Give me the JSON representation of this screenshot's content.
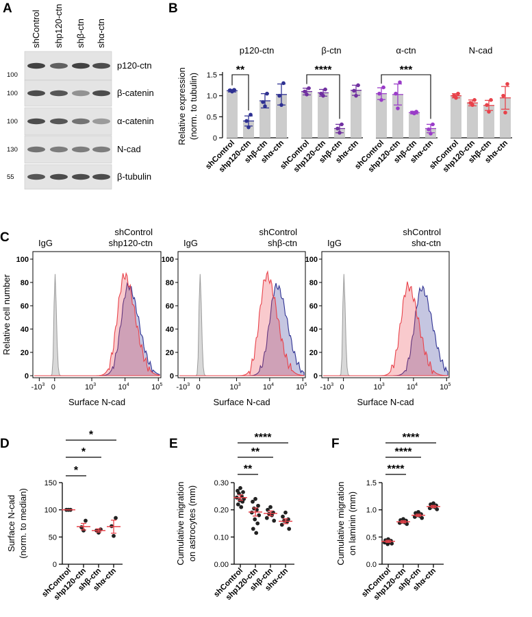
{
  "colors": {
    "blue": "#2e3192",
    "purple": "#7030a0",
    "red": "#e8424a",
    "gray": "#a0a0a0",
    "bar": "#cccccc",
    "median": "#e8424a",
    "dots": "#222222"
  },
  "panelA": {
    "label": "A",
    "lanes": [
      "shControl",
      "shp120-ctn",
      "shβ-ctn",
      "shα-ctn"
    ],
    "blots": [
      {
        "name": "p120-ctn",
        "mw": "100",
        "intensity": [
          0.85,
          0.7,
          0.85,
          0.8
        ]
      },
      {
        "name": "β-catenin",
        "mw": "100",
        "intensity": [
          0.8,
          0.75,
          0.45,
          0.8
        ]
      },
      {
        "name": "α-catenin",
        "mw": "100",
        "intensity": [
          0.8,
          0.75,
          0.6,
          0.4
        ]
      },
      {
        "name": "N-cad",
        "mw": "130",
        "intensity": [
          0.6,
          0.55,
          0.55,
          0.55
        ]
      },
      {
        "name": "β-tubulin",
        "mw": "55",
        "intensity": [
          0.75,
          0.8,
          0.8,
          0.8
        ]
      }
    ]
  },
  "chart_data": [
    {
      "panel": "B",
      "type": "bar",
      "ylabel": "Relative expression",
      "ylabel2": "(norm. to tubulin)",
      "ylim": [
        0,
        1.5
      ],
      "yticks": [
        "0",
        "0.5",
        "1.0",
        "1.5"
      ],
      "categories": [
        "shControl",
        "shp120-ctn",
        "shβ-ctn",
        "shα-ctn"
      ],
      "groups": [
        {
          "title": "p120-ctn",
          "color": "#2e3192",
          "means": [
            1.12,
            0.4,
            0.88,
            1.03
          ],
          "errors": [
            0.03,
            0.12,
            0.17,
            0.25
          ],
          "points": [
            [
              1.1,
              1.13,
              1.14
            ],
            [
              0.25,
              0.4,
              0.55
            ],
            [
              0.75,
              0.85,
              1.05
            ],
            [
              0.78,
              1.0,
              1.3
            ]
          ]
        },
        {
          "title": "β-ctn",
          "color": "#7030a0",
          "means": [
            1.1,
            1.07,
            0.22,
            1.13
          ],
          "errors": [
            0.08,
            0.08,
            0.1,
            0.12
          ],
          "points": [
            [
              1.03,
              1.1,
              1.18
            ],
            [
              1.0,
              1.05,
              1.15
            ],
            [
              0.12,
              0.22,
              0.32
            ],
            [
              1.0,
              1.12,
              1.25
            ]
          ]
        },
        {
          "title": "α-ctn",
          "color": "#9a3cc8",
          "means": [
            1.05,
            1.03,
            0.6,
            0.22
          ],
          "errors": [
            0.14,
            0.25,
            0.03,
            0.1
          ],
          "points": [
            [
              0.9,
              1.05,
              1.2
            ],
            [
              0.7,
              1.05,
              1.32
            ],
            [
              0.58,
              0.6,
              0.62
            ],
            [
              0.1,
              0.2,
              0.32
            ]
          ]
        },
        {
          "title": "N-cad",
          "color": "#e8424a",
          "means": [
            1.0,
            0.83,
            0.77,
            0.95
          ],
          "errors": [
            0.05,
            0.07,
            0.12,
            0.27
          ],
          "points": [
            [
              0.95,
              1.0,
              1.05
            ],
            [
              0.78,
              0.83,
              0.9
            ],
            [
              0.62,
              0.78,
              0.9
            ],
            [
              0.6,
              1.0,
              1.28
            ]
          ]
        }
      ],
      "significance": [
        {
          "group": 0,
          "from": 0,
          "to": 1,
          "label": "**"
        },
        {
          "group": 1,
          "from": 0,
          "to": 2,
          "label": "****"
        },
        {
          "group": 2,
          "from": 0,
          "to": 3,
          "label": "***"
        }
      ]
    },
    {
      "panel": "C",
      "type": "area",
      "ylabel": "Relative cell number",
      "xlabel": "Surface N-cad",
      "ylim": [
        0,
        100
      ],
      "yticks": [
        "0",
        "20",
        "40",
        "60",
        "80",
        "100"
      ],
      "xticks": [
        "-10",
        "0",
        "10",
        "10",
        "10"
      ],
      "xsup": [
        "3",
        "",
        "3",
        "4",
        "5"
      ],
      "histograms": [
        {
          "igg": "IgG",
          "control": "shControl",
          "knockdown": "shp120-ctn",
          "ctrl_center": 0.75,
          "kd_center": 0.72,
          "ctrl_peak": 77,
          "kd_peak": 86
        },
        {
          "igg": "IgG",
          "control": "shControl",
          "knockdown": "shβ-ctn",
          "ctrl_center": 0.78,
          "kd_center": 0.7,
          "ctrl_peak": 77,
          "kd_peak": 86
        },
        {
          "igg": "IgG",
          "control": "shControl",
          "knockdown": "shα-ctn",
          "ctrl_center": 0.79,
          "kd_center": 0.68,
          "ctrl_peak": 75,
          "kd_peak": 77
        }
      ]
    },
    {
      "panel": "D",
      "type": "scatter",
      "ylabel": "Surface N-cad",
      "ylabel2": "(norm. to median)",
      "ylim": [
        0,
        150
      ],
      "yticks": [
        "0",
        "50",
        "100",
        "150"
      ],
      "categories": [
        "shControl",
        "shp120-ctn",
        "shβ-ctn",
        "shα-ctn"
      ],
      "means": [
        100,
        69,
        62,
        69
      ],
      "errors": [
        0,
        6,
        3,
        12
      ],
      "points": [
        [
          100,
          100,
          100
        ],
        [
          62,
          68,
          80
        ],
        [
          58,
          62,
          64
        ],
        [
          52,
          70,
          85
        ]
      ],
      "significance": [
        {
          "from": 0,
          "to": 1,
          "label": "*"
        },
        {
          "from": 0,
          "to": 2,
          "label": "*"
        },
        {
          "from": 0,
          "to": 3,
          "label": "*"
        }
      ]
    },
    {
      "panel": "E",
      "type": "scatter",
      "ylabel": "Cumulative migration",
      "ylabel2": "on astrocytes (mm)",
      "ylim": [
        0,
        0.3
      ],
      "yticks": [
        "0.00",
        "0.10",
        "0.20",
        "0.30"
      ],
      "categories": [
        "shControl",
        "shp120-ctn",
        "shβ-ctn",
        "shα-ctn"
      ],
      "means": [
        0.245,
        0.192,
        0.187,
        0.158
      ],
      "errors": [
        0.01,
        0.015,
        0.009,
        0.009
      ],
      "points": [
        [
          0.28,
          0.27,
          0.265,
          0.26,
          0.25,
          0.245,
          0.24,
          0.235,
          0.23,
          0.22,
          0.21
        ],
        [
          0.24,
          0.23,
          0.215,
          0.205,
          0.2,
          0.19,
          0.18,
          0.165,
          0.15,
          0.13,
          0.115
        ],
        [
          0.21,
          0.2,
          0.19,
          0.185,
          0.18,
          0.17,
          0.16
        ],
        [
          0.19,
          0.175,
          0.165,
          0.16,
          0.155,
          0.145,
          0.13
        ]
      ],
      "significance": [
        {
          "from": 0,
          "to": 1,
          "label": "**"
        },
        {
          "from": 0,
          "to": 2,
          "label": "**"
        },
        {
          "from": 0,
          "to": 3,
          "label": "****"
        }
      ]
    },
    {
      "panel": "F",
      "type": "scatter",
      "ylabel": "Cumulative migration",
      "ylabel2": "on laminin (mm)",
      "ylim": [
        0,
        1.5
      ],
      "yticks": [
        "0.0",
        "0.5",
        "1.0",
        "1.5"
      ],
      "categories": [
        "shControl",
        "shp120-ctn",
        "shβ-ctn",
        "shα-ctn"
      ],
      "means": [
        0.42,
        0.78,
        0.9,
        1.06
      ],
      "errors": [
        0.02,
        0.02,
        0.02,
        0.02
      ],
      "points": [
        [
          0.46,
          0.44,
          0.43,
          0.42,
          0.41,
          0.4,
          0.38,
          0.37
        ],
        [
          0.83,
          0.81,
          0.8,
          0.78,
          0.77,
          0.76,
          0.74
        ],
        [
          0.96,
          0.94,
          0.92,
          0.9,
          0.89,
          0.87,
          0.85
        ],
        [
          1.12,
          1.1,
          1.08,
          1.06,
          1.05,
          1.03,
          1.01
        ]
      ],
      "significance": [
        {
          "from": 0,
          "to": 1,
          "label": "****"
        },
        {
          "from": 0,
          "to": 2,
          "label": "****"
        },
        {
          "from": 0,
          "to": 3,
          "label": "****"
        }
      ]
    }
  ]
}
